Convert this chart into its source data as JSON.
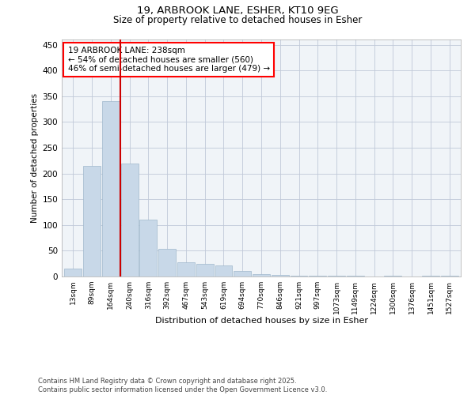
{
  "title1": "19, ARBROOK LANE, ESHER, KT10 9EG",
  "title2": "Size of property relative to detached houses in Esher",
  "xlabel": "Distribution of detached houses by size in Esher",
  "ylabel": "Number of detached properties",
  "categories": [
    "13sqm",
    "89sqm",
    "164sqm",
    "240sqm",
    "316sqm",
    "392sqm",
    "467sqm",
    "543sqm",
    "619sqm",
    "694sqm",
    "770sqm",
    "846sqm",
    "921sqm",
    "997sqm",
    "1073sqm",
    "1149sqm",
    "1224sqm",
    "1300sqm",
    "1376sqm",
    "1451sqm",
    "1527sqm"
  ],
  "values": [
    16,
    215,
    340,
    220,
    110,
    53,
    27,
    25,
    22,
    10,
    5,
    3,
    2,
    2,
    1,
    1,
    0,
    1,
    0,
    1,
    2
  ],
  "bar_color": "#c8d8e8",
  "bar_edge_color": "#a0b8cc",
  "vline_x_index": 3,
  "vline_color": "#cc0000",
  "annotation_text": "19 ARBROOK LANE: 238sqm\n← 54% of detached houses are smaller (560)\n46% of semi-detached houses are larger (479) →",
  "footer": "Contains HM Land Registry data © Crown copyright and database right 2025.\nContains public sector information licensed under the Open Government Licence v3.0.",
  "ylim": [
    0,
    460
  ],
  "yticks": [
    0,
    50,
    100,
    150,
    200,
    250,
    300,
    350,
    400,
    450
  ],
  "background_color": "#f0f4f8",
  "grid_color": "#c0c8d8"
}
